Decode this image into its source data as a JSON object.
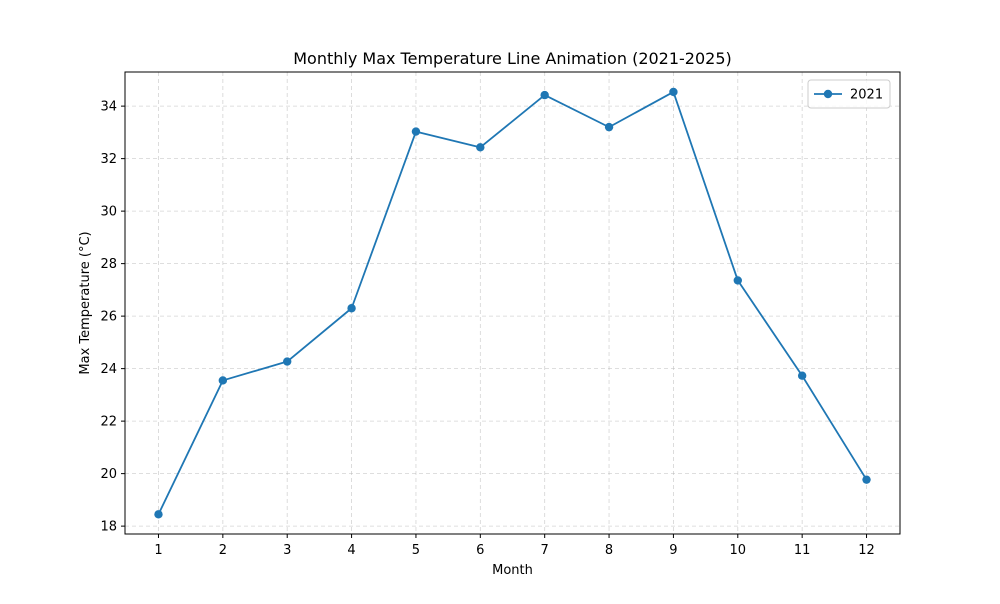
{
  "chart_data": {
    "type": "line",
    "title": "Monthly Max Temperature Line Animation (2021-2025)",
    "xlabel": "Month",
    "ylabel": "Max Temperature (°C)",
    "x": [
      1,
      2,
      3,
      4,
      5,
      6,
      7,
      8,
      9,
      10,
      11,
      12
    ],
    "xticks": [
      "1",
      "2",
      "3",
      "4",
      "5",
      "6",
      "7",
      "8",
      "9",
      "10",
      "11",
      "12"
    ],
    "yticks": [
      18,
      20,
      22,
      24,
      26,
      28,
      30,
      32,
      34
    ],
    "xlim": [
      0.48,
      12.52
    ],
    "ylim": [
      17.7,
      35.3
    ],
    "grid": true,
    "grid_style": "dashed",
    "legend_position": "upper right",
    "series": [
      {
        "name": "2021",
        "color": "#1f77b4",
        "marker": "circle",
        "values": [
          18.45,
          23.55,
          24.27,
          26.3,
          33.03,
          32.43,
          34.42,
          33.2,
          34.54,
          27.36,
          23.73,
          19.77
        ]
      }
    ]
  }
}
